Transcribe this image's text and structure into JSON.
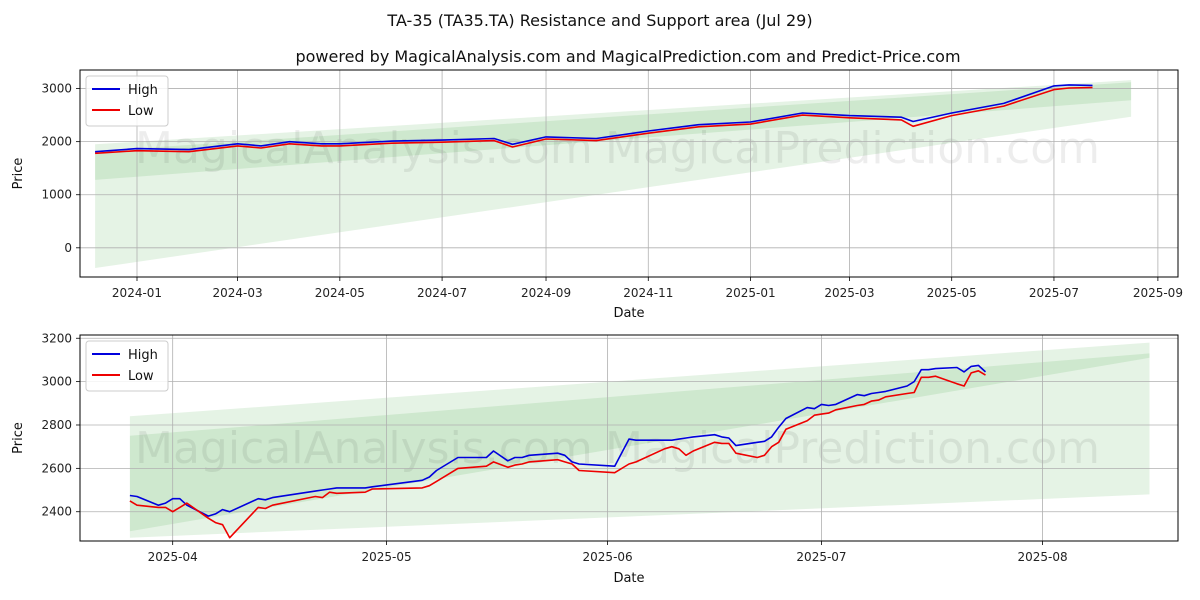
{
  "title": "TA-35 (TA35.TA) Resistance and Support area (Jul 29)",
  "subtitle": "powered by MagicalAnalysis.com and MagicalPrediction.com and Predict-Price.com",
  "watermarks": [
    "MagicalAnalysis.com",
    "MagicalPrediction.com"
  ],
  "colors": {
    "high": "#0000dd",
    "low": "#ee0000",
    "band": "#2ca02c",
    "grid": "#b0b0b0"
  },
  "chart_data": [
    {
      "type": "line",
      "xlabel": "Date",
      "ylabel": "Price",
      "grid": true,
      "legend": "top-left",
      "xlim": [
        "2023-11-28",
        "2025-09-13"
      ],
      "ylim": [
        -550,
        3350
      ],
      "x_ticks": [
        "2024-01-01",
        "2024-03-01",
        "2024-05-01",
        "2024-07-01",
        "2024-09-01",
        "2024-11-01",
        "2025-01-01",
        "2025-03-01",
        "2025-05-01",
        "2025-07-01",
        "2025-09-01"
      ],
      "x_tick_labels": [
        "2024-01",
        "2024-03",
        "2024-05",
        "2024-07",
        "2024-09",
        "2024-11",
        "2025-01",
        "2025-03",
        "2025-05",
        "2025-07",
        "2025-09"
      ],
      "y_ticks": [
        0,
        1000,
        2000,
        3000
      ],
      "y_tick_labels": [
        "0",
        "1000",
        "2000",
        "3000"
      ],
      "bands": [
        {
          "x": [
            "2023-12-07",
            "2025-08-16"
          ],
          "upper": [
            1950,
            3160
          ],
          "lower": [
            -380,
            2470
          ]
        },
        {
          "x": [
            "2023-12-07",
            "2025-08-16"
          ],
          "upper": [
            1820,
            3120
          ],
          "lower": [
            1280,
            2780
          ]
        }
      ],
      "series": [
        {
          "name": "High",
          "x": [
            "2023-12-07",
            "2024-01-01",
            "2024-02-01",
            "2024-03-01",
            "2024-03-15",
            "2024-04-01",
            "2024-04-20",
            "2024-05-01",
            "2024-06-01",
            "2024-07-01",
            "2024-08-01",
            "2024-08-12",
            "2024-09-01",
            "2024-10-01",
            "2024-11-01",
            "2024-12-01",
            "2025-01-01",
            "2025-02-01",
            "2025-03-01",
            "2025-04-01",
            "2025-04-08",
            "2025-05-01",
            "2025-06-01",
            "2025-07-01",
            "2025-07-10",
            "2025-07-24"
          ],
          "y": [
            1810,
            1870,
            1850,
            1960,
            1920,
            2000,
            1960,
            1960,
            2010,
            2030,
            2060,
            1950,
            2090,
            2060,
            2200,
            2320,
            2370,
            2540,
            2490,
            2460,
            2380,
            2540,
            2720,
            3050,
            3070,
            3060
          ]
        },
        {
          "name": "Low",
          "x": [
            "2023-12-07",
            "2024-01-01",
            "2024-02-01",
            "2024-03-01",
            "2024-03-15",
            "2024-04-01",
            "2024-04-20",
            "2024-05-01",
            "2024-06-01",
            "2024-07-01",
            "2024-08-01",
            "2024-08-12",
            "2024-09-01",
            "2024-10-01",
            "2024-11-01",
            "2024-12-01",
            "2025-01-01",
            "2025-02-01",
            "2025-03-01",
            "2025-04-01",
            "2025-04-08",
            "2025-05-01",
            "2025-06-01",
            "2025-07-01",
            "2025-07-10",
            "2025-07-24"
          ],
          "y": [
            1780,
            1830,
            1810,
            1920,
            1880,
            1960,
            1920,
            1920,
            1970,
            1990,
            2020,
            1900,
            2050,
            2020,
            2160,
            2280,
            2330,
            2500,
            2450,
            2410,
            2290,
            2490,
            2670,
            2980,
            3010,
            3020
          ]
        }
      ]
    },
    {
      "type": "line",
      "xlabel": "Date",
      "ylabel": "Price",
      "grid": true,
      "legend": "top-left",
      "xlim": [
        "2025-03-19",
        "2025-08-20"
      ],
      "ylim": [
        2265,
        3215
      ],
      "x_ticks": [
        "2025-04-01",
        "2025-05-01",
        "2025-06-01",
        "2025-07-01",
        "2025-08-01"
      ],
      "x_tick_labels": [
        "2025-04",
        "2025-05",
        "2025-06",
        "2025-07",
        "2025-08"
      ],
      "y_ticks": [
        2400,
        2600,
        2800,
        3000,
        3200
      ],
      "y_tick_labels": [
        "2400",
        "2600",
        "2800",
        "3000",
        "3200"
      ],
      "bands": [
        {
          "x": [
            "2025-03-26",
            "2025-08-16"
          ],
          "upper": [
            2840,
            3180
          ],
          "lower": [
            2280,
            2480
          ]
        },
        {
          "x": [
            "2025-03-26",
            "2025-08-16"
          ],
          "upper": [
            2750,
            3130
          ],
          "lower": [
            2310,
            3110
          ]
        }
      ],
      "series": [
        {
          "name": "High",
          "x": [
            "2025-03-26",
            "2025-03-27",
            "2025-03-30",
            "2025-03-31",
            "2025-04-01",
            "2025-04-02",
            "2025-04-03",
            "2025-04-06",
            "2025-04-07",
            "2025-04-08",
            "2025-04-09",
            "2025-04-13",
            "2025-04-14",
            "2025-04-15",
            "2025-04-21",
            "2025-04-22",
            "2025-04-23",
            "2025-04-24",
            "2025-04-28",
            "2025-04-29",
            "2025-05-06",
            "2025-05-07",
            "2025-05-08",
            "2025-05-11",
            "2025-05-15",
            "2025-05-16",
            "2025-05-18",
            "2025-05-19",
            "2025-05-20",
            "2025-05-21",
            "2025-05-25",
            "2025-05-26",
            "2025-05-27",
            "2025-05-28",
            "2025-06-02",
            "2025-06-04",
            "2025-06-05",
            "2025-06-09",
            "2025-06-10",
            "2025-06-11",
            "2025-06-12",
            "2025-06-13",
            "2025-06-16",
            "2025-06-17",
            "2025-06-18",
            "2025-06-19",
            "2025-06-22",
            "2025-06-23",
            "2025-06-24",
            "2025-06-25",
            "2025-06-26",
            "2025-06-29",
            "2025-06-30",
            "2025-07-01",
            "2025-07-02",
            "2025-07-03",
            "2025-07-06",
            "2025-07-07",
            "2025-07-08",
            "2025-07-09",
            "2025-07-10",
            "2025-07-13",
            "2025-07-14",
            "2025-07-15",
            "2025-07-16",
            "2025-07-17",
            "2025-07-20",
            "2025-07-21",
            "2025-07-22",
            "2025-07-23",
            "2025-07-24"
          ],
          "y": [
            2475,
            2470,
            2430,
            2440,
            2460,
            2460,
            2430,
            2380,
            2390,
            2410,
            2400,
            2460,
            2455,
            2465,
            2495,
            2500,
            2505,
            2510,
            2510,
            2515,
            2545,
            2560,
            2590,
            2650,
            2650,
            2680,
            2635,
            2650,
            2650,
            2660,
            2670,
            2660,
            2630,
            2620,
            2610,
            2735,
            2730,
            2730,
            2730,
            2735,
            2740,
            2745,
            2755,
            2745,
            2740,
            2705,
            2720,
            2725,
            2745,
            2790,
            2830,
            2880,
            2875,
            2895,
            2890,
            2895,
            2940,
            2935,
            2945,
            2950,
            2955,
            2980,
            3000,
            3055,
            3055,
            3060,
            3065,
            3045,
            3070,
            3075,
            3045
          ]
        },
        {
          "name": "Low",
          "x": [
            "2025-03-26",
            "2025-03-27",
            "2025-03-30",
            "2025-03-31",
            "2025-04-01",
            "2025-04-02",
            "2025-04-03",
            "2025-04-06",
            "2025-04-07",
            "2025-04-08",
            "2025-04-09",
            "2025-04-13",
            "2025-04-14",
            "2025-04-15",
            "2025-04-21",
            "2025-04-22",
            "2025-04-23",
            "2025-04-24",
            "2025-04-28",
            "2025-04-29",
            "2025-05-06",
            "2025-05-07",
            "2025-05-08",
            "2025-05-11",
            "2025-05-15",
            "2025-05-16",
            "2025-05-18",
            "2025-05-19",
            "2025-05-20",
            "2025-05-21",
            "2025-05-25",
            "2025-05-26",
            "2025-05-27",
            "2025-05-28",
            "2025-06-02",
            "2025-06-04",
            "2025-06-05",
            "2025-06-09",
            "2025-06-10",
            "2025-06-11",
            "2025-06-12",
            "2025-06-13",
            "2025-06-16",
            "2025-06-17",
            "2025-06-18",
            "2025-06-19",
            "2025-06-22",
            "2025-06-23",
            "2025-06-24",
            "2025-06-25",
            "2025-06-26",
            "2025-06-29",
            "2025-06-30",
            "2025-07-01",
            "2025-07-02",
            "2025-07-03",
            "2025-07-06",
            "2025-07-07",
            "2025-07-08",
            "2025-07-09",
            "2025-07-10",
            "2025-07-13",
            "2025-07-14",
            "2025-07-15",
            "2025-07-16",
            "2025-07-17",
            "2025-07-20",
            "2025-07-21",
            "2025-07-22",
            "2025-07-23",
            "2025-07-24"
          ],
          "y": [
            2450,
            2430,
            2420,
            2420,
            2400,
            2420,
            2440,
            2370,
            2350,
            2340,
            2280,
            2420,
            2415,
            2430,
            2470,
            2465,
            2490,
            2485,
            2490,
            2505,
            2510,
            2520,
            2540,
            2600,
            2610,
            2630,
            2605,
            2615,
            2620,
            2630,
            2640,
            2630,
            2620,
            2590,
            2580,
            2620,
            2630,
            2690,
            2700,
            2690,
            2660,
            2680,
            2720,
            2715,
            2715,
            2670,
            2650,
            2660,
            2700,
            2720,
            2780,
            2820,
            2845,
            2850,
            2855,
            2870,
            2890,
            2895,
            2910,
            2915,
            2930,
            2945,
            2950,
            3020,
            3020,
            3025,
            2990,
            2980,
            3040,
            3050,
            3030
          ]
        }
      ]
    }
  ]
}
